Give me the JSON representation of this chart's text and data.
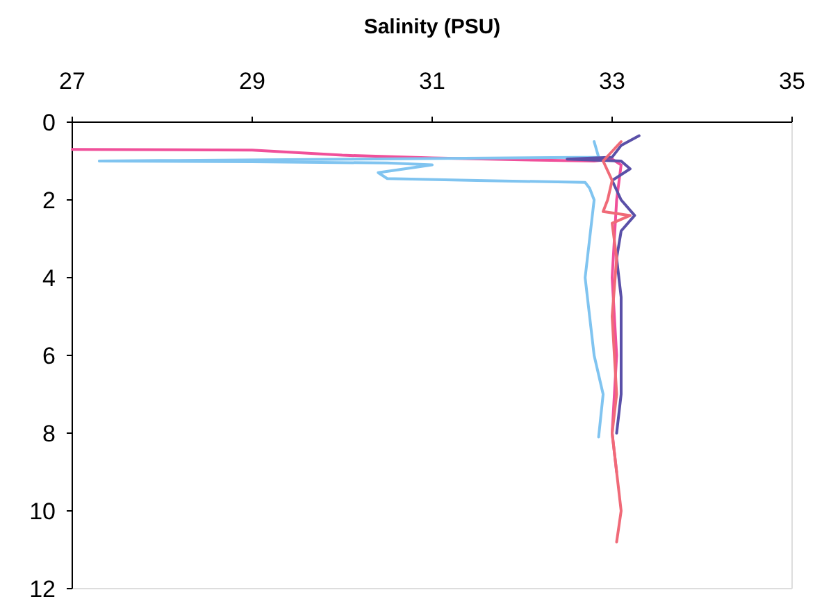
{
  "chart_data": {
    "type": "line",
    "xlabel": "Salinity (PSU)",
    "xlim": [
      27,
      35
    ],
    "xticks": [
      27,
      29,
      31,
      33,
      35
    ],
    "ylim": [
      12,
      0
    ],
    "yticks": [
      0,
      2,
      4,
      6,
      8,
      10,
      12
    ],
    "grid": false,
    "series": [
      {
        "color": "#f0509a",
        "x": [
          27,
          29,
          30,
          31,
          32,
          32.8,
          33.0,
          33.1,
          33.05,
          33.0,
          33.05,
          33.0,
          33.05
        ],
        "values": [
          0.7,
          0.72,
          0.85,
          0.92,
          0.97,
          1.0,
          0.95,
          1.1,
          2,
          4,
          6,
          8,
          9
        ]
      },
      {
        "color": "#80c4f0",
        "x": [
          32.8,
          32.85,
          27.3,
          29,
          30.5,
          31,
          30.4,
          30.5,
          31.5,
          32.7,
          32.75,
          32.8,
          32.75,
          32.7,
          32.75,
          32.8,
          32.9,
          32.85
        ],
        "values": [
          0.5,
          0.9,
          1.0,
          1.02,
          1.05,
          1.1,
          1.3,
          1.45,
          1.5,
          1.55,
          1.7,
          2.0,
          3,
          4,
          5,
          6,
          7,
          8.1
        ]
      },
      {
        "color": "#5a50a8",
        "x": [
          33.3,
          33.1,
          33.0,
          32.5,
          33.1,
          33.2,
          33.0,
          33.1,
          33.25,
          33.1,
          33.05,
          33.1,
          33.1,
          33.1,
          33.05
        ],
        "values": [
          0.35,
          0.6,
          0.9,
          0.95,
          1.0,
          1.2,
          1.5,
          2.0,
          2.4,
          2.8,
          3.5,
          4.5,
          6,
          7,
          8
        ]
      },
      {
        "color": "#f06a78",
        "x": [
          33.1,
          32.9,
          33.0,
          32.95,
          32.9,
          33.2,
          33.0,
          33.05,
          33.0,
          33.05,
          33.0,
          33.05,
          33.1,
          33.05
        ],
        "values": [
          0.5,
          1.0,
          1.5,
          2.0,
          2.3,
          2.4,
          2.6,
          3.5,
          5,
          7,
          8,
          9,
          10,
          10.8
        ]
      }
    ]
  }
}
